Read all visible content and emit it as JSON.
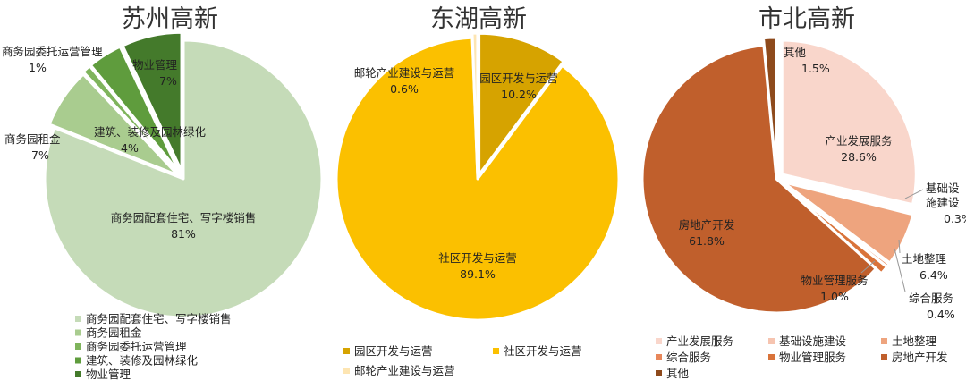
{
  "chart_data": [
    {
      "type": "pie",
      "title": "苏州高新",
      "colors": [
        "#c5dbb8",
        "#a9cc8f",
        "#7fb45c",
        "#5f9c3d",
        "#447a2b"
      ],
      "slices": [
        {
          "name": "商务园配套住宅、写字楼销售",
          "value": 81,
          "label": "81%"
        },
        {
          "name": "商务园租金",
          "value": 7,
          "label": "7%"
        },
        {
          "name": "商务园委托运营管理",
          "value": 1,
          "label": "1%"
        },
        {
          "name": "建筑、装修及园林绿化",
          "value": 4,
          "label": "4%"
        },
        {
          "name": "物业管理",
          "value": 7,
          "label": "7%"
        }
      ],
      "legend": [
        "商务园配套住宅、写字楼销售",
        "商务园租金",
        "商务园委托运营管理",
        "建筑、装修及园林绿化",
        "物业管理"
      ]
    },
    {
      "type": "pie",
      "title": "东湖高新",
      "colors": [
        "#d6a300",
        "#fbc000",
        "#fde5b2"
      ],
      "slices": [
        {
          "name": "园区开发与运营",
          "value": 10.2,
          "label": "10.2%"
        },
        {
          "name": "社区开发与运营",
          "value": 89.1,
          "label": "89.1%"
        },
        {
          "name": "邮轮产业建设与运营",
          "value": 0.6,
          "label": "0.6%"
        }
      ],
      "legend": [
        "园区开发与运营",
        "社区开发与运营",
        "邮轮产业建设与运营"
      ]
    },
    {
      "type": "pie",
      "title": "市北高新",
      "colors": [
        "#f9d6cb",
        "#f6c4b0",
        "#eea47e",
        "#e8875a",
        "#d9733a",
        "#c05f2c",
        "#8e4a1c"
      ],
      "slices": [
        {
          "name": "产业发展服务",
          "value": 28.6,
          "label": "28.6%"
        },
        {
          "name": "基础设施建设",
          "value": 0.3,
          "label": "0.3%"
        },
        {
          "name": "土地整理",
          "value": 6.4,
          "label": "6.4%"
        },
        {
          "name": "综合服务",
          "value": 0.4,
          "label": "0.4%"
        },
        {
          "name": "物业管理服务",
          "value": 1.0,
          "label": "1.0%"
        },
        {
          "name": "房地产开发",
          "value": 61.8,
          "label": "61.8%"
        },
        {
          "name": "其他",
          "value": 1.5,
          "label": "1.5%"
        }
      ],
      "legend": [
        "产业发展服务",
        "基础设施建设",
        "土地整理",
        "综合服务",
        "物业管理服务",
        "房地产开发",
        "其他"
      ]
    }
  ]
}
